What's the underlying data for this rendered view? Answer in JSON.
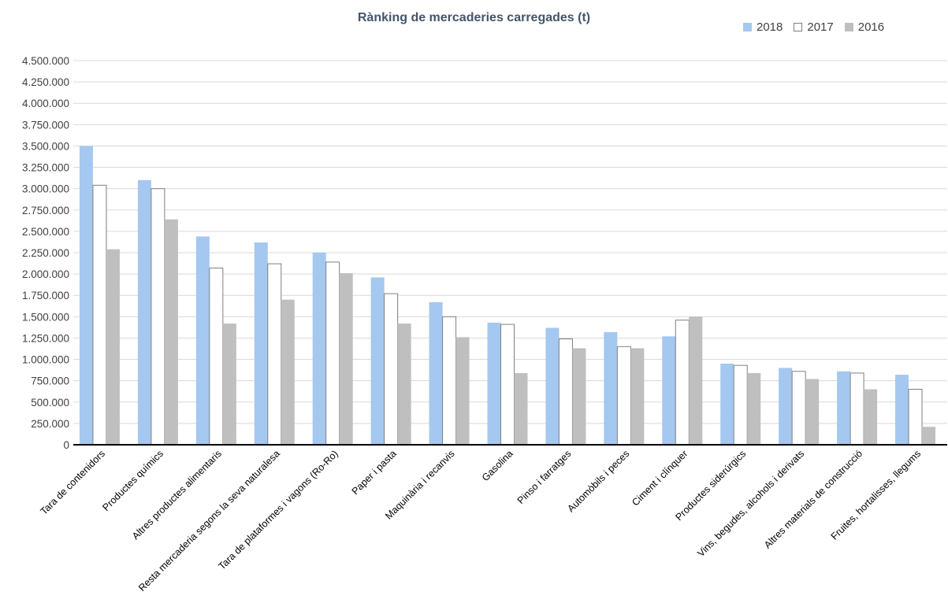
{
  "chart_data": {
    "type": "bar",
    "title": "Rànking de mercaderies carregades (t)",
    "xlabel": "",
    "ylabel": "",
    "ylim": [
      0,
      4500000
    ],
    "y_ticks": [
      0,
      250000,
      500000,
      750000,
      1000000,
      1250000,
      1500000,
      1750000,
      2000000,
      2250000,
      2500000,
      2750000,
      3000000,
      3250000,
      3500000,
      3750000,
      4000000,
      4250000,
      4500000
    ],
    "y_tick_labels": [
      "0",
      "250.000",
      "500.000",
      "750.000",
      "1.000.000",
      "1.250.000",
      "1.500.000",
      "1.750.000",
      "2.000.000",
      "2.250.000",
      "2.500.000",
      "2.750.000",
      "3.000.000",
      "3.250.000",
      "3.500.000",
      "3.750.000",
      "4.000.000",
      "4.250.000",
      "4.500.000"
    ],
    "grid": true,
    "legend_position": "top-right",
    "categories": [
      "Tara de contenidors",
      "Productes químics",
      "Altres productes alimentaris",
      "Resta mercaderia segons la seva naturalesa",
      "Tara de plataformes i vagons (Ro-Ro)",
      "Paper i pasta",
      "Maquinària i recanvis",
      "Gasolina",
      "Pinso i farratges",
      "Automòbils i peces",
      "Ciment i clínquer",
      "Productes siderúrgics",
      "Vins, begudes, alcohols i derivats",
      "Altres materials de construcció",
      "Fruites, hortalisses, llegums"
    ],
    "series": [
      {
        "name": "2018",
        "color": "#A4C8F0",
        "border": "#A4C8F0",
        "values": [
          3500000,
          3100000,
          2440000,
          2370000,
          2250000,
          1960000,
          1670000,
          1430000,
          1370000,
          1320000,
          1270000,
          950000,
          900000,
          860000,
          820000
        ]
      },
      {
        "name": "2017",
        "color": "#FFFFFF",
        "border": "#7F7F7F",
        "values": [
          3040000,
          3000000,
          2070000,
          2120000,
          2140000,
          1770000,
          1500000,
          1410000,
          1240000,
          1150000,
          1460000,
          930000,
          860000,
          840000,
          650000
        ]
      },
      {
        "name": "2016",
        "color": "#BFBFBF",
        "border": "#BFBFBF",
        "values": [
          2290000,
          2640000,
          1420000,
          1700000,
          2010000,
          1420000,
          1260000,
          840000,
          1130000,
          1130000,
          1500000,
          840000,
          770000,
          650000,
          210000
        ]
      }
    ]
  }
}
